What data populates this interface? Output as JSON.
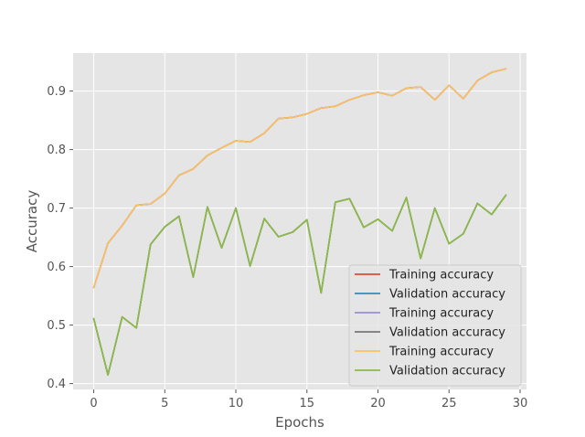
{
  "chart_data": {
    "type": "line",
    "title": "",
    "xlabel": "Epochs",
    "ylabel": "Accuracy",
    "xlim": [
      -1.45,
      30.45
    ],
    "ylim": [
      0.39,
      0.965
    ],
    "xticks": [
      0,
      5,
      10,
      15,
      20,
      25,
      30
    ],
    "yticks": [
      0.4,
      0.5,
      0.6,
      0.7,
      0.8,
      0.9
    ],
    "grid": true,
    "legend_position": "lower-right",
    "x": [
      0,
      1,
      2,
      3,
      4,
      5,
      6,
      7,
      8,
      9,
      10,
      11,
      12,
      13,
      14,
      15,
      16,
      17,
      18,
      19,
      20,
      21,
      22,
      23,
      24,
      25,
      26,
      27,
      28,
      29
    ],
    "series": [
      {
        "name": "Training accuracy",
        "color": "#e24a33",
        "values": [
          0.564,
          0.64,
          0.67,
          0.705,
          0.707,
          0.725,
          0.756,
          0.767,
          0.79,
          0.803,
          0.815,
          0.813,
          0.828,
          0.853,
          0.855,
          0.861,
          0.871,
          0.874,
          0.885,
          0.893,
          0.898,
          0.892,
          0.905,
          0.907,
          0.885,
          0.91,
          0.887,
          0.918,
          0.932,
          0.938
        ]
      },
      {
        "name": "Validation accuracy",
        "color": "#348abd",
        "values": [
          0.511,
          0.415,
          0.514,
          0.495,
          0.638,
          0.668,
          0.686,
          0.582,
          0.702,
          0.632,
          0.7,
          0.601,
          0.682,
          0.651,
          0.659,
          0.68,
          0.555,
          0.71,
          0.716,
          0.667,
          0.681,
          0.661,
          0.718,
          0.614,
          0.7,
          0.639,
          0.656,
          0.708,
          0.689,
          0.722
        ]
      },
      {
        "name": "Training accuracy",
        "color": "#988ed5",
        "values": [
          0.564,
          0.64,
          0.67,
          0.705,
          0.707,
          0.725,
          0.756,
          0.767,
          0.79,
          0.803,
          0.815,
          0.813,
          0.828,
          0.853,
          0.855,
          0.861,
          0.871,
          0.874,
          0.885,
          0.893,
          0.898,
          0.892,
          0.905,
          0.907,
          0.885,
          0.91,
          0.887,
          0.918,
          0.932,
          0.938
        ]
      },
      {
        "name": "Validation accuracy",
        "color": "#777777",
        "values": [
          0.511,
          0.415,
          0.514,
          0.495,
          0.638,
          0.668,
          0.686,
          0.582,
          0.702,
          0.632,
          0.7,
          0.601,
          0.682,
          0.651,
          0.659,
          0.68,
          0.555,
          0.71,
          0.716,
          0.667,
          0.681,
          0.661,
          0.718,
          0.614,
          0.7,
          0.639,
          0.656,
          0.708,
          0.689,
          0.722
        ]
      },
      {
        "name": "Training accuracy",
        "color": "#fbc15e",
        "values": [
          0.564,
          0.64,
          0.67,
          0.705,
          0.707,
          0.725,
          0.756,
          0.767,
          0.79,
          0.803,
          0.815,
          0.813,
          0.828,
          0.853,
          0.855,
          0.861,
          0.871,
          0.874,
          0.885,
          0.893,
          0.898,
          0.892,
          0.905,
          0.907,
          0.885,
          0.91,
          0.887,
          0.918,
          0.932,
          0.938
        ]
      },
      {
        "name": "Validation accuracy",
        "color": "#8eba42",
        "values": [
          0.511,
          0.415,
          0.514,
          0.495,
          0.638,
          0.668,
          0.686,
          0.582,
          0.702,
          0.632,
          0.7,
          0.601,
          0.682,
          0.651,
          0.659,
          0.68,
          0.555,
          0.71,
          0.716,
          0.667,
          0.681,
          0.661,
          0.718,
          0.614,
          0.7,
          0.639,
          0.656,
          0.708,
          0.689,
          0.722
        ]
      }
    ]
  }
}
